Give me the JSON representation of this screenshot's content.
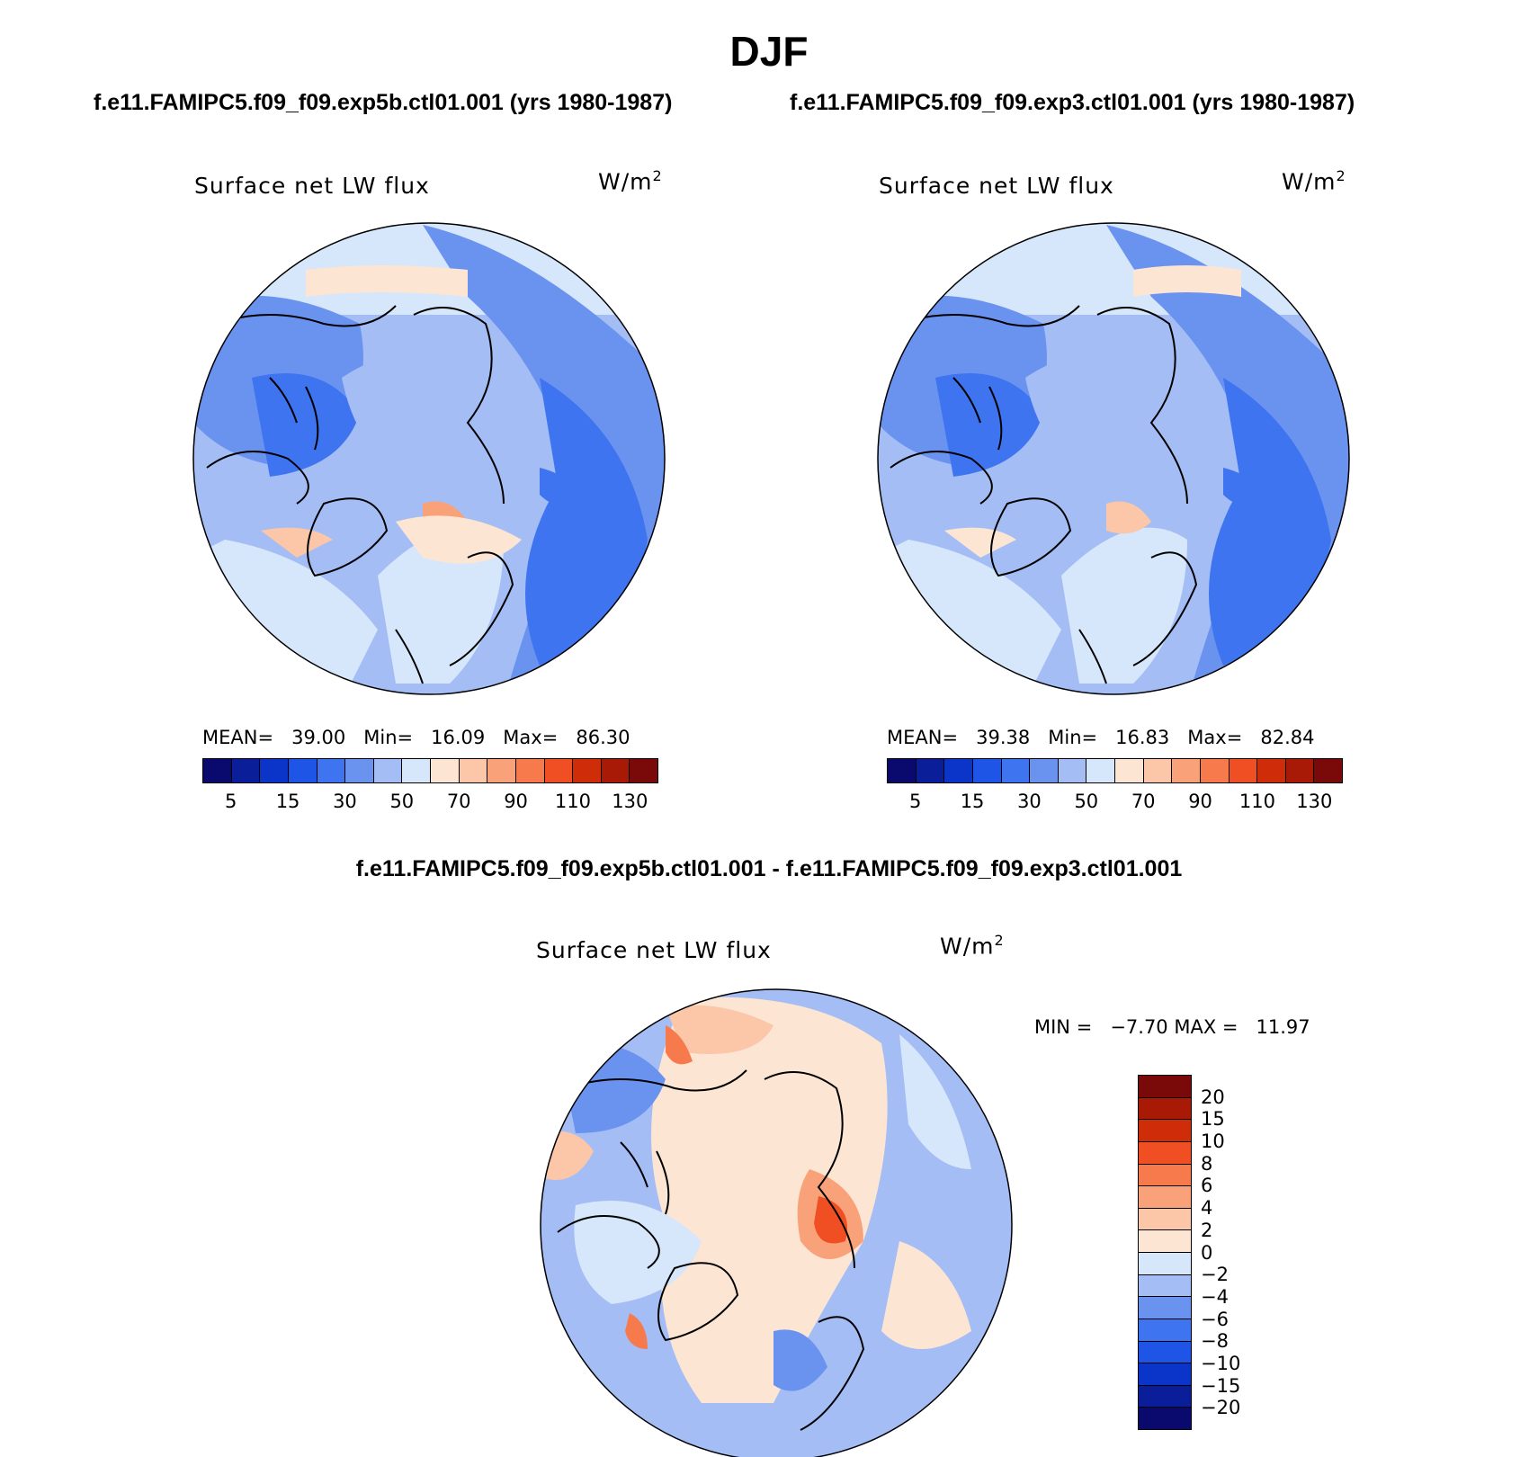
{
  "title": "DJF",
  "panels": [
    {
      "case_title": "f.e11.FAMIPC5.f09_f09.exp5b.ctl01.001 (yrs 1980-1987)",
      "label": "Surface net LW flux",
      "units": "W/m",
      "units_sup": "2",
      "mean_label": "MEAN=",
      "mean_value": "39.00",
      "min_label": "Min=",
      "min_value": "16.09",
      "max_label": "Max=",
      "max_value": "86.30"
    },
    {
      "case_title": "f.e11.FAMIPC5.f09_f09.exp3.ctl01.001 (yrs 1980-1987)",
      "label": "Surface net LW flux",
      "units": "W/m",
      "units_sup": "2",
      "mean_label": "MEAN=",
      "mean_value": "39.38",
      "min_label": "Min=",
      "min_value": "16.83",
      "max_label": "Max=",
      "max_value": "82.84"
    }
  ],
  "diff_panel": {
    "case_title": "f.e11.FAMIPC5.f09_f09.exp5b.ctl01.001 - f.e11.FAMIPC5.f09_f09.exp3.ctl01.001",
    "label": "Surface net LW flux",
    "units": "W/m",
    "units_sup": "2",
    "stats": "MIN =   −7.70 MAX =   11.97"
  },
  "colorbar_main": {
    "colors": [
      "#0a0a6e",
      "#0a1e9a",
      "#0a35c8",
      "#1f55e6",
      "#3f74f0",
      "#6a93f0",
      "#a4bdf5",
      "#d6e6fb",
      "#fde5d4",
      "#fcc6a8",
      "#f9a27a",
      "#f77a4c",
      "#ef4f22",
      "#cf2c0a",
      "#a81a06",
      "#7a0a0a"
    ],
    "tick_labels": [
      "5",
      "15",
      "30",
      "50",
      "70",
      "90",
      "110",
      "130"
    ]
  },
  "colorbar_diff": {
    "colors": [
      "#0a0a6e",
      "#0a1e9a",
      "#0a35c8",
      "#1f55e6",
      "#3f74f0",
      "#6a93f0",
      "#a4bdf5",
      "#d6e6fb",
      "#fde5d4",
      "#fcc6a8",
      "#f9a27a",
      "#f77a4c",
      "#ef4f22",
      "#cf2c0a",
      "#a81a06",
      "#7a0a0a"
    ],
    "tick_labels": [
      "−20",
      "−15",
      "−10",
      "−8",
      "−6",
      "−4",
      "−2",
      "0",
      "2",
      "4",
      "6",
      "8",
      "10",
      "15",
      "20"
    ]
  }
}
